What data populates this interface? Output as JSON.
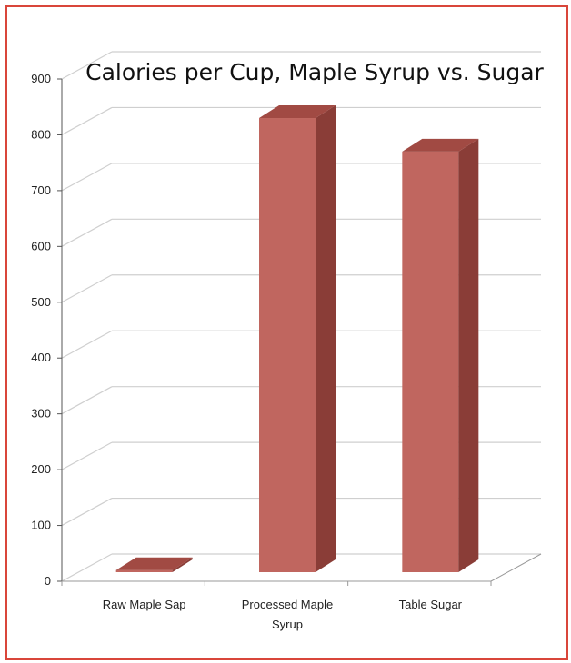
{
  "chart_data": {
    "type": "bar",
    "title": "Calories per Cup, Maple Syrup vs. Sugar",
    "categories": [
      "Raw Maple Sap",
      "Processed Maple Syrup",
      "Table Sugar"
    ],
    "category_lines": [
      [
        "Raw Maple Sap"
      ],
      [
        "Processed Maple",
        "Syrup"
      ],
      [
        "Table Sugar"
      ]
    ],
    "values": [
      20,
      830,
      770
    ],
    "ylim": [
      0,
      900
    ],
    "yticks": [
      "0",
      "100",
      "200",
      "300",
      "400",
      "500",
      "600",
      "700",
      "800",
      "900"
    ],
    "xlabel": "",
    "ylabel": "",
    "grid": true,
    "legend": "none",
    "style": "3d-column"
  },
  "colors": {
    "frame": "#d9463a",
    "bar_front": "#c0665f",
    "bar_side": "#8a3d37",
    "bar_top": "#a14a43",
    "grid": "#cfcfcf"
  }
}
